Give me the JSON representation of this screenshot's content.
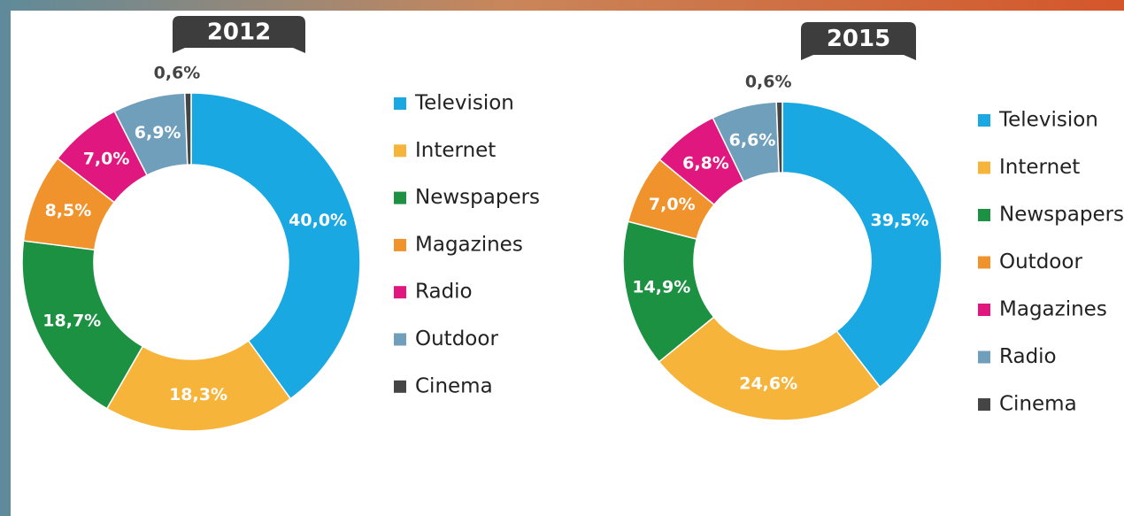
{
  "chart_data": [
    {
      "type": "donut",
      "title": "2012",
      "categories": [
        "Television",
        "Internet",
        "Newspapers",
        "Magazines",
        "Radio",
        "Outdoor",
        "Cinema"
      ],
      "values": [
        40.0,
        18.3,
        18.7,
        8.5,
        7.0,
        6.9,
        0.6
      ],
      "value_labels": [
        "40,0%",
        "18,3%",
        "18,7%",
        "8,5%",
        "7,0%",
        "6,9%",
        "0,6%"
      ],
      "colors": [
        "#1aa8e2",
        "#f6b43a",
        "#1c9142",
        "#f0932c",
        "#e0177f",
        "#6f9fbb",
        "#454545"
      ]
    },
    {
      "type": "donut",
      "title": "2015",
      "categories": [
        "Television",
        "Internet",
        "Newspapers",
        "Outdoor",
        "Magazines",
        "Radio",
        "Cinema"
      ],
      "values": [
        39.5,
        24.6,
        14.9,
        7.0,
        6.8,
        6.6,
        0.6
      ],
      "value_labels": [
        "39,5%",
        "24,6%",
        "14,9%",
        "7,0%",
        "6,8%",
        "6,6%",
        "0,6%"
      ],
      "colors": [
        "#1aa8e2",
        "#f6b43a",
        "#1c9142",
        "#f0932c",
        "#e0177f",
        "#6f9fbb",
        "#454545"
      ]
    }
  ]
}
